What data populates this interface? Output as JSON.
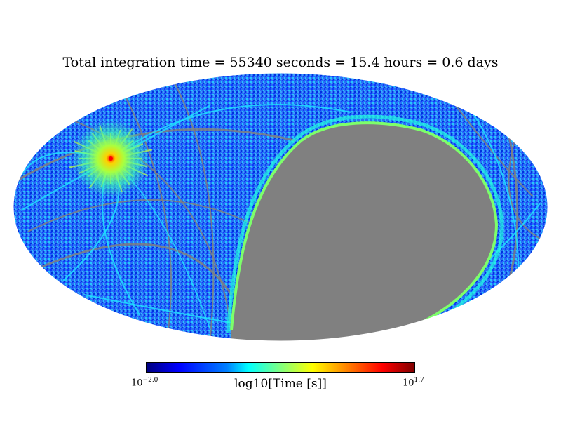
{
  "chart_data": {
    "type": "heatmap",
    "projection": "mollweide",
    "title": "Total integration time = 55340 seconds = 15.4 hours = 0.6 days",
    "colorbar": {
      "label": "log10[Time [s]]",
      "min_base": "10",
      "min_exponent": "−2.0",
      "max_base": "10",
      "max_exponent": "1.7",
      "min_value": -2.0,
      "max_value": 1.7,
      "colormap": "jet"
    },
    "masked_color": "#808080",
    "masked_region": "large unobserved patch covering right-center of the sky map",
    "hotspot_color": "#ff0000",
    "background_color": "#2e7dff"
  }
}
